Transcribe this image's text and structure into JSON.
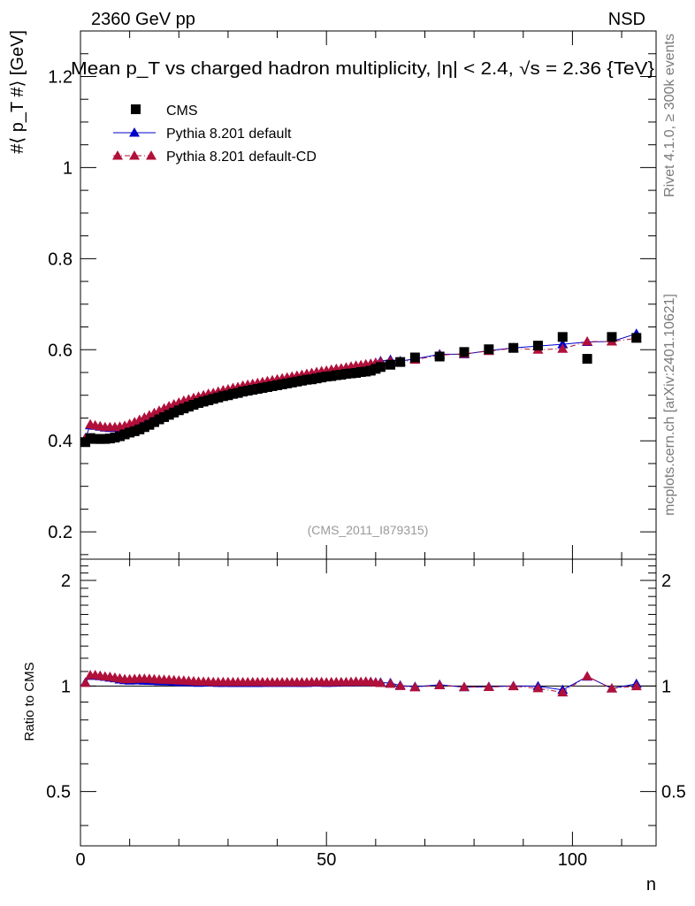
{
  "header": {
    "left": "2360 GeV pp",
    "right": "NSD"
  },
  "side_labels": {
    "rivet": "Rivet 4.1.0, ≥ 300k events",
    "mcplots": "mcplots.cern.ch [arXiv:2401.10621]"
  },
  "chart_data": {
    "type": "scatter",
    "title": "Mean p_T vs charged hadron multiplicity, |η| < 2.4, √s = 2.36 {TeV}",
    "xlabel": "n",
    "ylabel": "#⟨ p_T #⟩ [GeV]",
    "ratio_ylabel": "Ratio to CMS",
    "watermark": "(CMS_2011_I879315)",
    "xlim": [
      0,
      117
    ],
    "ylim": [
      0.14,
      1.3
    ],
    "ratio_ylim": [
      0.35,
      2.3
    ],
    "x_ticks": [
      0,
      50,
      100
    ],
    "y_ticks": [
      0.2,
      0.4,
      0.6,
      0.8,
      1.0,
      1.2
    ],
    "y_tick_labels": [
      "0.2",
      "0.4",
      "0.6",
      "0.8",
      "1",
      "1.2"
    ],
    "ratio_ticks": [
      0.5,
      1,
      2
    ],
    "ratio_tick_labels": [
      "0.5",
      "1",
      "2"
    ],
    "legend": [
      {
        "label": "CMS",
        "style": "black-square"
      },
      {
        "label": "Pythia 8.201 default",
        "style": "blue-triangle-solid"
      },
      {
        "label": "Pythia 8.201 default-CD",
        "style": "crimson-triangle-dashdot"
      }
    ],
    "series": [
      {
        "name": "CMS",
        "color": "#000000",
        "x": [
          1,
          2,
          3,
          4,
          5,
          6,
          7,
          8,
          9,
          10,
          11,
          12,
          13,
          14,
          15,
          16,
          17,
          18,
          19,
          20,
          21,
          22,
          23,
          24,
          25,
          26,
          27,
          28,
          29,
          30,
          31,
          32,
          33,
          34,
          35,
          36,
          37,
          38,
          39,
          40,
          41,
          42,
          43,
          44,
          45,
          46,
          47,
          48,
          49,
          50,
          51,
          52,
          53,
          54,
          55,
          56,
          57,
          58,
          59,
          60,
          61,
          63,
          65,
          68,
          73,
          78,
          83,
          88,
          93,
          98,
          103,
          108,
          113
        ],
        "y": [
          0.397,
          0.406,
          0.404,
          0.404,
          0.404,
          0.405,
          0.407,
          0.41,
          0.414,
          0.418,
          0.421,
          0.425,
          0.43,
          0.435,
          0.441,
          0.447,
          0.452,
          0.457,
          0.462,
          0.467,
          0.471,
          0.475,
          0.479,
          0.483,
          0.486,
          0.489,
          0.492,
          0.495,
          0.498,
          0.5,
          0.503,
          0.505,
          0.508,
          0.51,
          0.512,
          0.514,
          0.516,
          0.518,
          0.52,
          0.522,
          0.524,
          0.526,
          0.528,
          0.53,
          0.532,
          0.534,
          0.535,
          0.537,
          0.539,
          0.541,
          0.542,
          0.544,
          0.545,
          0.547,
          0.548,
          0.549,
          0.551,
          0.552,
          0.554,
          0.558,
          0.562,
          0.567,
          0.573,
          0.583,
          0.585,
          0.595,
          0.601,
          0.604,
          0.609,
          0.628,
          0.58,
          0.628,
          0.626
        ]
      },
      {
        "name": "Pythia 8.201 default",
        "color": "#0000cc",
        "x": [
          1,
          2,
          3,
          4,
          5,
          6,
          7,
          8,
          9,
          10,
          11,
          12,
          13,
          14,
          15,
          16,
          17,
          18,
          19,
          20,
          21,
          22,
          23,
          24,
          25,
          26,
          27,
          28,
          29,
          30,
          31,
          32,
          33,
          34,
          35,
          36,
          37,
          38,
          39,
          40,
          41,
          42,
          43,
          44,
          45,
          46,
          47,
          48,
          49,
          50,
          51,
          52,
          53,
          54,
          55,
          56,
          57,
          58,
          59,
          60,
          61,
          63,
          65,
          68,
          73,
          78,
          83,
          88,
          93,
          98,
          103,
          108,
          113
        ],
        "y": [
          0.406,
          0.434,
          0.433,
          0.431,
          0.429,
          0.428,
          0.428,
          0.428,
          0.43,
          0.433,
          0.437,
          0.441,
          0.445,
          0.45,
          0.456,
          0.461,
          0.466,
          0.471,
          0.475,
          0.479,
          0.483,
          0.487,
          0.49,
          0.493,
          0.497,
          0.5,
          0.503,
          0.505,
          0.508,
          0.511,
          0.513,
          0.515,
          0.518,
          0.52,
          0.522,
          0.524,
          0.527,
          0.529,
          0.531,
          0.533,
          0.535,
          0.537,
          0.539,
          0.541,
          0.543,
          0.545,
          0.547,
          0.549,
          0.551,
          0.552,
          0.554,
          0.556,
          0.558,
          0.56,
          0.561,
          0.563,
          0.565,
          0.567,
          0.569,
          0.571,
          0.575,
          0.578,
          0.575,
          0.58,
          0.59,
          0.59,
          0.598,
          0.604,
          0.608,
          0.612,
          0.617,
          0.618,
          0.635
        ]
      },
      {
        "name": "Pythia 8.201 default-CD",
        "color": "#b0103a",
        "x": [
          1,
          2,
          3,
          4,
          5,
          6,
          7,
          8,
          9,
          10,
          11,
          12,
          13,
          14,
          15,
          16,
          17,
          18,
          19,
          20,
          21,
          22,
          23,
          24,
          25,
          26,
          27,
          28,
          29,
          30,
          31,
          32,
          33,
          34,
          35,
          36,
          37,
          38,
          39,
          40,
          41,
          42,
          43,
          44,
          45,
          46,
          47,
          48,
          49,
          50,
          51,
          52,
          53,
          54,
          55,
          56,
          57,
          58,
          59,
          60,
          61,
          63,
          65,
          68,
          73,
          78,
          83,
          88,
          93,
          98,
          103,
          108,
          113
        ],
        "y": [
          0.405,
          0.436,
          0.434,
          0.432,
          0.43,
          0.43,
          0.43,
          0.431,
          0.433,
          0.437,
          0.441,
          0.446,
          0.451,
          0.456,
          0.461,
          0.466,
          0.471,
          0.476,
          0.48,
          0.484,
          0.488,
          0.491,
          0.494,
          0.497,
          0.5,
          0.503,
          0.505,
          0.508,
          0.511,
          0.513,
          0.516,
          0.518,
          0.521,
          0.523,
          0.525,
          0.527,
          0.529,
          0.531,
          0.533,
          0.535,
          0.537,
          0.539,
          0.541,
          0.543,
          0.545,
          0.547,
          0.549,
          0.551,
          0.553,
          0.554,
          0.556,
          0.558,
          0.559,
          0.561,
          0.563,
          0.565,
          0.566,
          0.568,
          0.569,
          0.571,
          0.573,
          0.575,
          0.573,
          0.578,
          0.588,
          0.591,
          0.597,
          0.603,
          0.6,
          0.602,
          0.618,
          0.618,
          0.625
        ]
      }
    ]
  }
}
